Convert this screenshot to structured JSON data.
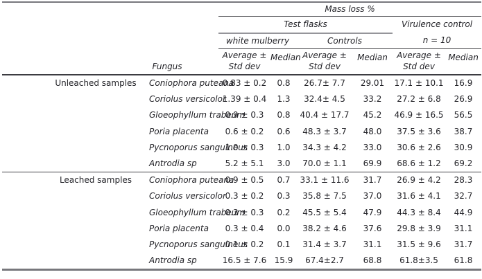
{
  "table": {
    "title": "Mass loss %",
    "headers": {
      "test_flasks": "Test flasks",
      "virulence_control": "Virulence control",
      "virulence_n": "n = 10",
      "white_mulberry": "white mulberry",
      "controls": "Controls",
      "avg_line1": "Average ±",
      "avg_line2": "Std dev",
      "median": "Median",
      "fungus": "Fungus"
    },
    "column_order": [
      "fungus",
      "white_mulberry_avg_std",
      "white_mulberry_median",
      "controls_avg_std",
      "controls_median",
      "virulence_avg_std",
      "virulence_median"
    ],
    "groups": [
      {
        "label": "Unleached samples",
        "rows": [
          [
            "Coniophora puteana",
            "0.83 ± 0.2",
            "0.8",
            "26.7± 7.7",
            "29.01",
            "17.1 ± 10.1",
            "16.9"
          ],
          [
            "Coriolus versicolor",
            "1.39 ± 0.4",
            "1.3",
            "32.4± 4.5",
            "33.2",
            "27.2 ± 6.8",
            "26.9"
          ],
          [
            "Gloeophyllum trabeum",
            "0.9 ± 0.3",
            "0.8",
            "40.4 ± 17.7",
            "45.2",
            "46.9 ± 16.5",
            "56.5"
          ],
          [
            "Poria placenta",
            "0.6 ± 0.2",
            "0.6",
            "48.3 ± 3.7",
            "48.0",
            "37.5 ± 3.6",
            "38.7"
          ],
          [
            "Pycnoporus sanguineus",
            "1.0 ± 0.3",
            "1.0",
            "34.3 ± 4.2",
            "33.0",
            "30.6 ± 2.6",
            "30.9"
          ],
          [
            "Antrodia sp",
            "5.2 ± 5.1",
            "3.0",
            "70.0 ± 1.1",
            "69.9",
            "68.6 ± 1.2",
            "69.2"
          ]
        ]
      },
      {
        "label": "Leached samples",
        "rows": [
          [
            "Coniophora puteana",
            "0.9 ± 0.5",
            "0.7",
            "33.1 ± 11.6",
            "31.7",
            "26.9 ± 4.2",
            "28.3"
          ],
          [
            "Coriolus versicolor",
            "0.3 ± 0.2",
            "0.3",
            "35.8 ± 7.5",
            "37.0",
            "31.6 ± 4.1",
            "32.7"
          ],
          [
            "Gloeophyllum trabeum",
            "0.3 ± 0.3",
            "0.2",
            "45.5 ± 5.4",
            "47.9",
            "44.3 ± 8.4",
            "44.9"
          ],
          [
            "Poria placenta",
            "0.3 ± 0.4",
            "0.0",
            "38.2 ± 4.6",
            "37.6",
            "29.8 ± 3.9",
            "31.1"
          ],
          [
            "Pycnoporus sanguineus",
            "0.1 ± 0.2",
            "0.1",
            "31.4 ± 3.7",
            "31.1",
            "31.5 ± 9.6",
            "31.7"
          ],
          [
            "Antrodia sp",
            "16.5 ± 7.6",
            "15.9",
            "67.4±2.7",
            "68.8",
            "61.8±3.5",
            "61.8"
          ]
        ]
      }
    ],
    "colors": {
      "text": "#232328",
      "rule_dark": "#3c3c41",
      "rule_gray": "#95959a",
      "outer_border": "#77777c",
      "background": "#ffffff"
    }
  }
}
